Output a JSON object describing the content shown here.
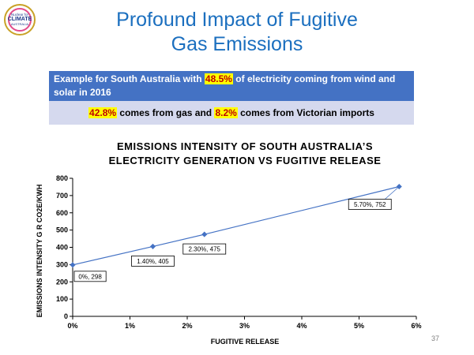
{
  "logo": {
    "line1": "Nuclear for",
    "line2": "CLIMATE",
    "line3": "AUSTRALIA"
  },
  "title": {
    "line1": "Profound Impact of Fugitive",
    "line2": "Gas Emissions"
  },
  "box1": {
    "pre": "Example for South Australia with ",
    "highlight": "48.5%",
    "post": " of electricity coming from wind and solar in 2016"
  },
  "box2": {
    "hl1": "42.8%",
    "mid": " comes from gas and ",
    "hl2": "8.2%",
    "post": " comes from Victorian imports"
  },
  "colors": {
    "title": "#1b6fbf",
    "box1_bg": "#4472c4",
    "box2_bg": "#d5d9ee",
    "highlight": "#ffff00",
    "highlight_text": "#c00000",
    "series": "#4472c4"
  },
  "chart_data": {
    "type": "line",
    "title_line1": "EMISSIONS INTENSITY OF SOUTH AUSTRALIA’S",
    "title_line2": "ELECTRICITY GENERATION VS FUGITIVE  RELEASE",
    "xlabel": "FUGITIVE RELEASE",
    "ylabel": "EMISSIONS INTENSITY G R CO2E/KWH",
    "xlim": [
      0,
      6
    ],
    "ylim": [
      0,
      800
    ],
    "x_ticks": [
      0,
      1,
      2,
      3,
      4,
      5,
      6
    ],
    "x_tick_labels": [
      "0%",
      "1%",
      "2%",
      "3%",
      "4%",
      "5%",
      "6%"
    ],
    "y_ticks": [
      0,
      100,
      200,
      300,
      400,
      500,
      600,
      700,
      800
    ],
    "y_tick_labels": [
      "0",
      "100",
      "200",
      "300",
      "400",
      "500",
      "600",
      "700",
      "800"
    ],
    "grid": false,
    "series": [
      {
        "points": [
          {
            "x": 0,
            "y": 298,
            "label": "0%, 298"
          },
          {
            "x": 1.4,
            "y": 405,
            "label": "1.40%, 405"
          },
          {
            "x": 2.3,
            "y": 475,
            "label": "2.30%, 475"
          },
          {
            "x": 5.7,
            "y": 752,
            "label": "5.70%, 752"
          }
        ]
      }
    ]
  },
  "page_number": "37"
}
